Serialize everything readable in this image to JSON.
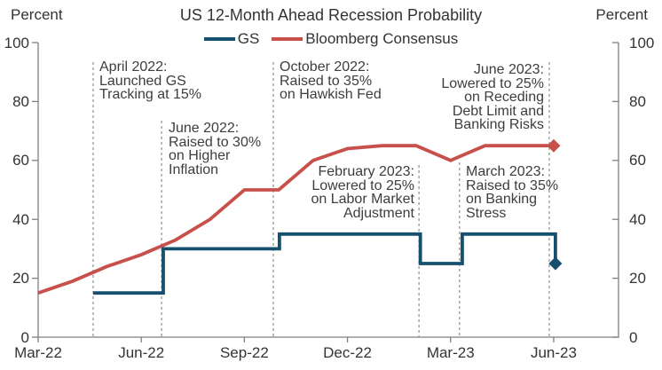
{
  "header": {
    "title": "US 12-Month Ahead Recession Probability",
    "left_axis_unit": "Percent",
    "right_axis_unit": "Percent"
  },
  "legend": [
    {
      "label": "GS",
      "color": "#17506F"
    },
    {
      "label": "Bloomberg Consensus",
      "color": "#C8504B"
    }
  ],
  "axes": {
    "y_ticks_left": [
      100,
      80,
      60,
      40,
      20,
      0
    ],
    "y_ticks_right": [
      100,
      80,
      60,
      40,
      20,
      0
    ],
    "x_ticks": [
      "Mar-22",
      "Jun-22",
      "Sep-22",
      "Dec-22",
      "Mar-23",
      "Jun-23"
    ],
    "ylim": [
      0,
      100
    ],
    "grid": false
  },
  "annotations": [
    {
      "id": "april-2022",
      "lines": [
        "April 2022:",
        "Launched GS",
        "Tracking at 15%"
      ]
    },
    {
      "id": "june-2022",
      "lines": [
        "June 2022:",
        "Raised to 30%",
        "on Higher",
        "Inflation"
      ]
    },
    {
      "id": "october-2022",
      "lines": [
        "October 2022:",
        "Raised to 35%",
        "on Hawkish Fed"
      ]
    },
    {
      "id": "february-2023",
      "lines": [
        "February 2023:",
        "Lowered to 25%",
        "on Labor Market",
        "Adjustment"
      ]
    },
    {
      "id": "march-2023",
      "lines": [
        "March 2023:",
        "Raised to 35%",
        "on Banking",
        "Stress"
      ]
    },
    {
      "id": "june-2023",
      "lines": [
        "June 2023:",
        "Lowered to 25%",
        "on Receding",
        "Debt Limit and",
        "Banking Risks"
      ]
    }
  ],
  "chart_data": {
    "type": "line",
    "title": "US 12-Month Ahead Recession Probability",
    "ylabel": "Percent",
    "ylim": [
      0,
      100
    ],
    "x_unit": "months from Mar-2022 to Jun-2023",
    "legend_position": "top",
    "grid": false,
    "series": [
      {
        "name": "GS",
        "color": "#17506F",
        "style": "step-after",
        "end_marker": "diamond",
        "points": [
          {
            "date": "Apr-22",
            "m": 1.6,
            "value": 15
          },
          {
            "date": "Jun-22",
            "m": 3.64,
            "value": 30
          },
          {
            "date": "Oct-22",
            "m": 7.02,
            "value": 35
          },
          {
            "date": "Feb-23",
            "m": 11.12,
            "value": 25
          },
          {
            "date": "Mar-23",
            "m": 12.34,
            "value": 35
          },
          {
            "date": "Jun-23",
            "m": 15.05,
            "value": 25
          }
        ]
      },
      {
        "name": "Bloomberg Consensus",
        "color": "#C8504B",
        "style": "line",
        "end_marker": "diamond",
        "points": [
          {
            "date": "Mar-22",
            "m": 0,
            "value": 15
          },
          {
            "date": "Apr-22",
            "m": 1,
            "value": 19
          },
          {
            "date": "May-22",
            "m": 2,
            "value": 24
          },
          {
            "date": "Jun-22",
            "m": 3,
            "value": 28
          },
          {
            "date": "Jul-22",
            "m": 4,
            "value": 33
          },
          {
            "date": "Aug-22",
            "m": 5,
            "value": 40
          },
          {
            "date": "Sep-22",
            "m": 6,
            "value": 50
          },
          {
            "date": "Oct-22",
            "m": 7,
            "value": 50
          },
          {
            "date": "Nov-22",
            "m": 8,
            "value": 60
          },
          {
            "date": "Dec-22",
            "m": 9,
            "value": 64
          },
          {
            "date": "Jan-23",
            "m": 10,
            "value": 65
          },
          {
            "date": "Feb-23",
            "m": 11,
            "value": 65
          },
          {
            "date": "Mar-23",
            "m": 12,
            "value": 60
          },
          {
            "date": "Apr-23",
            "m": 13,
            "value": 65
          },
          {
            "date": "May-23",
            "m": 14,
            "value": 65
          },
          {
            "date": "Jun-23",
            "m": 15,
            "value": 65
          }
        ]
      }
    ]
  }
}
